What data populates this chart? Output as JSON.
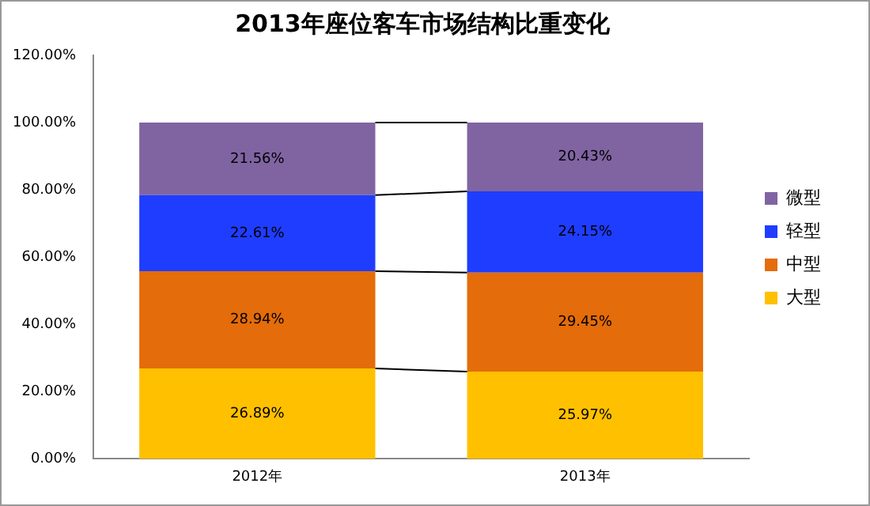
{
  "chart_data": {
    "type": "bar",
    "title": "2013年座位客车市场结构比重变化",
    "categories": [
      "2012年",
      "2013年"
    ],
    "stacked": true,
    "legend": "right",
    "series": [
      {
        "name": "大型",
        "color": "#ffc000",
        "values": [
          26.89,
          25.97
        ],
        "value_labels": [
          "26.89%",
          "25.97%"
        ]
      },
      {
        "name": "中型",
        "color": "#e46c0a",
        "values": [
          28.94,
          29.45
        ],
        "value_labels": [
          "28.94%",
          "29.45%"
        ]
      },
      {
        "name": "轻型",
        "color": "#1f3dff",
        "values": [
          22.61,
          24.15
        ],
        "value_labels": [
          "22.61%",
          "24.15%"
        ]
      },
      {
        "name": "微型",
        "color": "#8064a2",
        "values": [
          21.56,
          20.43
        ],
        "value_labels": [
          "21.56%",
          "20.43%"
        ]
      }
    ],
    "ylim": [
      0,
      120
    ],
    "yticks": [
      {
        "value": 0,
        "label": "0.00%"
      },
      {
        "value": 20,
        "label": "20.00%"
      },
      {
        "value": 40,
        "label": "40.00%"
      },
      {
        "value": 60,
        "label": "60.00%"
      },
      {
        "value": 80,
        "label": "80.00%"
      },
      {
        "value": 100,
        "label": "100.00%"
      },
      {
        "value": 120,
        "label": "120.00%"
      }
    ],
    "grid": false
  }
}
